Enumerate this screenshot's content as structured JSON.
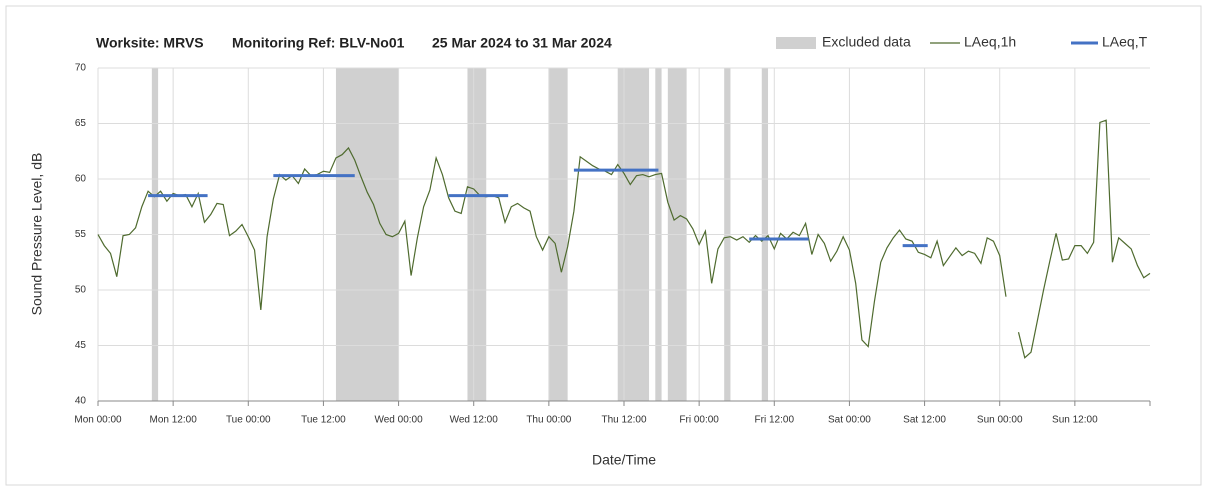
{
  "chart_data": {
    "type": "line",
    "title": [
      "Worksite: MRVS",
      "Monitoring Ref: BLV-No01",
      "25 Mar 2024 to 31 Mar 2024"
    ],
    "xlabel": "Date/Time",
    "ylabel": "Sound Pressure Level, dB",
    "xlim": [
      0,
      168
    ],
    "xticks": [
      {
        "value": 0,
        "label": "Mon 00:00"
      },
      {
        "value": 12,
        "label": "Mon 12:00"
      },
      {
        "value": 24,
        "label": "Tue 00:00"
      },
      {
        "value": 36,
        "label": "Tue 12:00"
      },
      {
        "value": 48,
        "label": "Wed 00:00"
      },
      {
        "value": 60,
        "label": "Wed 12:00"
      },
      {
        "value": 72,
        "label": "Thu 00:00"
      },
      {
        "value": 84,
        "label": "Thu 12:00"
      },
      {
        "value": 96,
        "label": "Fri 00:00"
      },
      {
        "value": 108,
        "label": "Fri 12:00"
      },
      {
        "value": 120,
        "label": "Sat 00:00"
      },
      {
        "value": 132,
        "label": "Sat 12:00"
      },
      {
        "value": 144,
        "label": "Sun 00:00"
      },
      {
        "value": 156,
        "label": "Sun 12:00"
      }
    ],
    "ylim": [
      40,
      70
    ],
    "yticks": [
      40,
      45,
      50,
      55,
      60,
      65,
      70
    ],
    "grid": true,
    "excluded": {
      "name": "Excluded data",
      "color": "#d0d0d0",
      "ranges": [
        [
          8.6,
          9.6
        ],
        [
          38,
          48
        ],
        [
          59,
          62
        ],
        [
          72,
          75
        ],
        [
          83,
          88
        ],
        [
          89,
          90
        ],
        [
          91,
          94
        ],
        [
          100,
          101
        ],
        [
          106,
          107
        ]
      ]
    },
    "series": [
      {
        "name": "LAeq,1h",
        "color": "#4f6b2f",
        "x": [
          0,
          1,
          2,
          3,
          4,
          5,
          6,
          7,
          8,
          9,
          10,
          11,
          12,
          13,
          14,
          15,
          16,
          17,
          18,
          19,
          20,
          21,
          22,
          23,
          24,
          25,
          26,
          27,
          28,
          29,
          30,
          31,
          32,
          33,
          34,
          35,
          36,
          37,
          38,
          39,
          40,
          41,
          42,
          43,
          44,
          45,
          46,
          47,
          48,
          49,
          50,
          51,
          52,
          53,
          54,
          55,
          56,
          57,
          58,
          59,
          60,
          61,
          62,
          63,
          64,
          65,
          66,
          67,
          68,
          69,
          70,
          71,
          72,
          73,
          74,
          75,
          76,
          77,
          78,
          79,
          80,
          81,
          82,
          83,
          84,
          85,
          86,
          87,
          88,
          89,
          90,
          91,
          92,
          93,
          94,
          95,
          96,
          97,
          98,
          99,
          100,
          101,
          102,
          103,
          104,
          105,
          106,
          107,
          108,
          109,
          110,
          111,
          112,
          113,
          114,
          115,
          116,
          117,
          118,
          119,
          120,
          121,
          122,
          123,
          124,
          125,
          126,
          127,
          128,
          129,
          130,
          131,
          132,
          133,
          134,
          135,
          136,
          137,
          138,
          139,
          140,
          141,
          142,
          143,
          144,
          145,
          146,
          147,
          148,
          149,
          150,
          151,
          152,
          153,
          154,
          155,
          156,
          157,
          158,
          159,
          160,
          161,
          162,
          163,
          164,
          165,
          166,
          167,
          168
        ],
        "values": [
          55.0,
          54.0,
          53.3,
          51.2,
          54.9,
          55.0,
          55.6,
          57.5,
          58.9,
          58.4,
          58.9,
          58.0,
          58.7,
          58.5,
          58.6,
          57.5,
          58.7,
          56.1,
          56.8,
          57.8,
          57.7,
          54.9,
          55.3,
          55.9,
          54.8,
          53.6,
          48.2,
          54.8,
          58.2,
          60.4,
          59.9,
          60.3,
          59.6,
          60.9,
          60.3,
          60.4,
          60.7,
          60.6,
          61.9,
          62.2,
          62.8,
          61.7,
          60.2,
          58.8,
          57.7,
          56.0,
          55.0,
          54.8,
          55.1,
          56.2,
          51.3,
          54.7,
          57.5,
          59.0,
          61.9,
          60.4,
          58.3,
          57.1,
          56.9,
          59.3,
          59.1,
          58.5,
          58.4,
          58.5,
          58.3,
          56.1,
          57.5,
          57.8,
          57.4,
          57.1,
          54.8,
          53.6,
          54.8,
          54.2,
          51.6,
          53.9,
          57.1,
          62.0,
          61.6,
          61.2,
          60.9,
          60.7,
          60.4,
          61.3,
          60.5,
          59.5,
          60.3,
          60.4,
          60.2,
          60.4,
          60.5,
          57.9,
          56.3,
          56.7,
          56.4,
          55.5,
          54.1,
          55.3,
          50.6,
          53.7,
          54.7,
          54.8,
          54.5,
          54.8,
          54.3,
          54.9,
          54.4,
          54.9,
          53.7,
          55.1,
          54.6,
          55.2,
          54.9,
          56.0,
          53.2,
          55.0,
          54.2,
          52.6,
          53.5,
          54.8,
          53.6,
          50.6,
          45.5,
          44.9,
          49.0,
          52.5,
          53.8,
          54.7,
          55.4,
          54.6,
          54.4,
          53.4,
          53.2,
          52.9,
          54.4,
          52.2,
          53.0,
          53.8,
          53.1,
          53.5,
          53.3,
          52.4,
          54.7,
          54.4,
          53.1,
          49.4,
          null,
          46.2,
          43.9,
          44.4,
          47.2,
          50.0,
          52.6,
          55.1,
          52.7,
          52.8,
          54.0,
          54.0,
          53.3,
          54.3,
          65.1,
          65.3,
          52.5,
          54.7,
          54.2,
          53.7,
          52.2,
          51.1,
          51.5
        ]
      }
    ],
    "period": {
      "name": "LAeq,T",
      "color": "#4472c4",
      "segments": [
        {
          "x": [
            8,
            17.5
          ],
          "value": 58.5
        },
        {
          "x": [
            28,
            41
          ],
          "value": 60.3
        },
        {
          "x": [
            56,
            65.5
          ],
          "value": 58.5
        },
        {
          "x": [
            76,
            89.5
          ],
          "value": 60.8
        },
        {
          "x": [
            104,
            113.5
          ],
          "value": 54.6
        },
        {
          "x": [
            128.5,
            132.5
          ],
          "value": 54.0
        }
      ]
    }
  }
}
